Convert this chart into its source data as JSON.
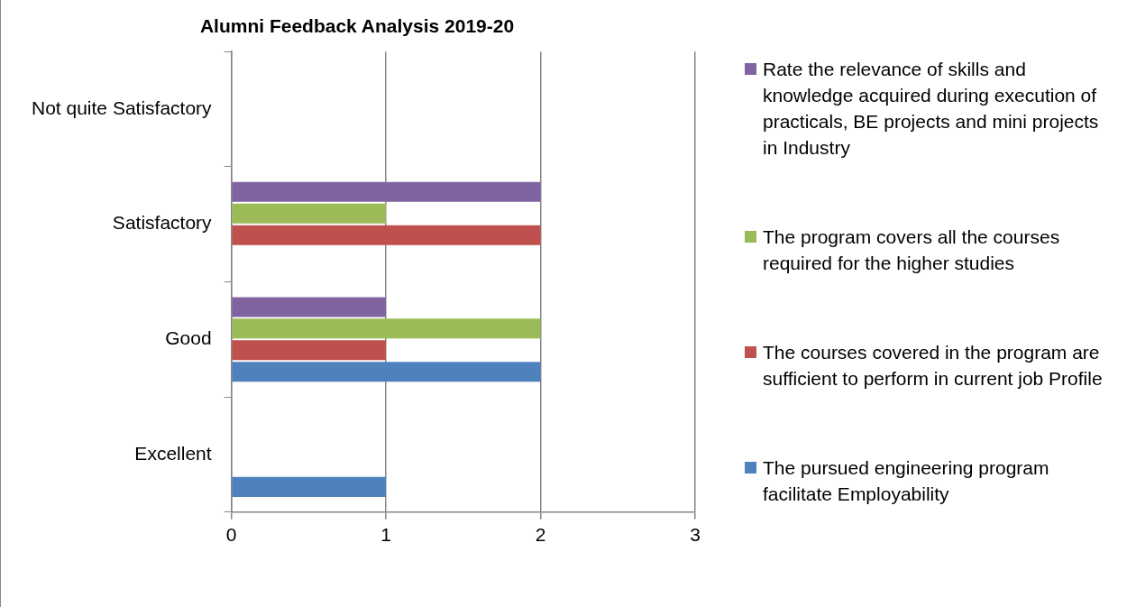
{
  "chart_data": {
    "type": "bar",
    "orientation": "horizontal",
    "title": "Alumni Feedback Analysis 2019-20",
    "categories": [
      "Not quite Satisfactory",
      "Satisfactory",
      "Good",
      "Excellent"
    ],
    "series": [
      {
        "name": "Rate the relevance of skills and knowledge acquired during execution of practicals, BE projects and mini projects in Industry",
        "color": "#8064a2",
        "values": [
          0,
          2,
          1,
          0
        ]
      },
      {
        "name": "The program covers all the courses required for the higher studies",
        "color": "#9bbb59",
        "values": [
          0,
          1,
          2,
          0
        ]
      },
      {
        "name": "The courses covered in the program are sufficient to perform in current job Profile",
        "color": "#c0504d",
        "values": [
          0,
          2,
          1,
          0
        ]
      },
      {
        "name": "The pursued engineering program facilitate Employability",
        "color": "#4f81bd",
        "values": [
          0,
          0,
          2,
          1
        ]
      }
    ],
    "xlim": [
      0,
      3
    ],
    "xticks": [
      0,
      1,
      2,
      3
    ],
    "grid": "x",
    "legend": "right"
  }
}
